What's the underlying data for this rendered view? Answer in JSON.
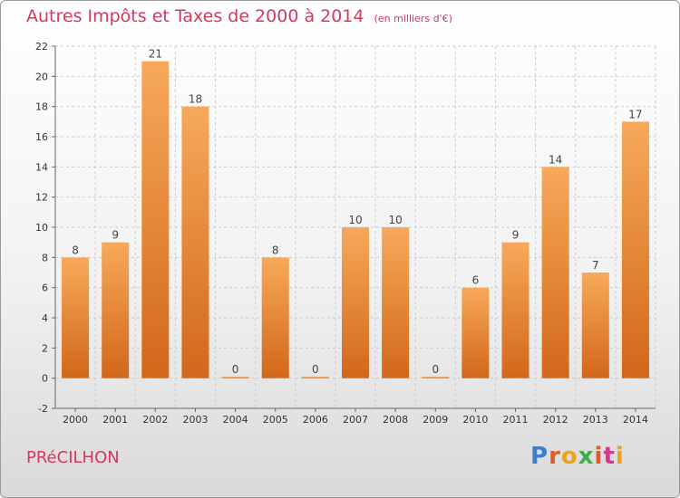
{
  "header": {
    "title": "Autres Impôts et Taxes de 2000 à 2014",
    "subtitle": "(en milliers d'€)"
  },
  "footer": {
    "commune": "PRéCILHON",
    "logo_text": "Proxiti",
    "logo_colors": [
      "#3a7fd0",
      "#e05a2b",
      "#e9a321",
      "#3ab04a",
      "#e05a2b",
      "#d03a8c",
      "#e9a321"
    ]
  },
  "colors": {
    "title": "#d23a5c",
    "bar_top": "#f7a95a",
    "bar_bottom": "#d2671a",
    "grid": "#cccccc",
    "axis": "#666666"
  },
  "chart_data": {
    "type": "bar",
    "categories": [
      "2000",
      "2001",
      "2002",
      "2003",
      "2004",
      "2005",
      "2006",
      "2007",
      "2008",
      "2009",
      "2010",
      "2011",
      "2012",
      "2013",
      "2014"
    ],
    "values": [
      8,
      9,
      21,
      18,
      0,
      8,
      0,
      10,
      10,
      0,
      6,
      9,
      14,
      7,
      17
    ],
    "labels": [
      "8",
      "9",
      "21",
      "18",
      "0",
      "8",
      "0",
      "10",
      "10",
      "0",
      "6",
      "9",
      "14",
      "7",
      "17"
    ],
    "yticks": [
      -2,
      0,
      2,
      4,
      6,
      8,
      10,
      12,
      14,
      16,
      18,
      20,
      22
    ],
    "ylim": [
      -2,
      22
    ],
    "grid": "horizontal dashed",
    "title": "Autres Impôts et Taxes de 2000 à 2014"
  }
}
